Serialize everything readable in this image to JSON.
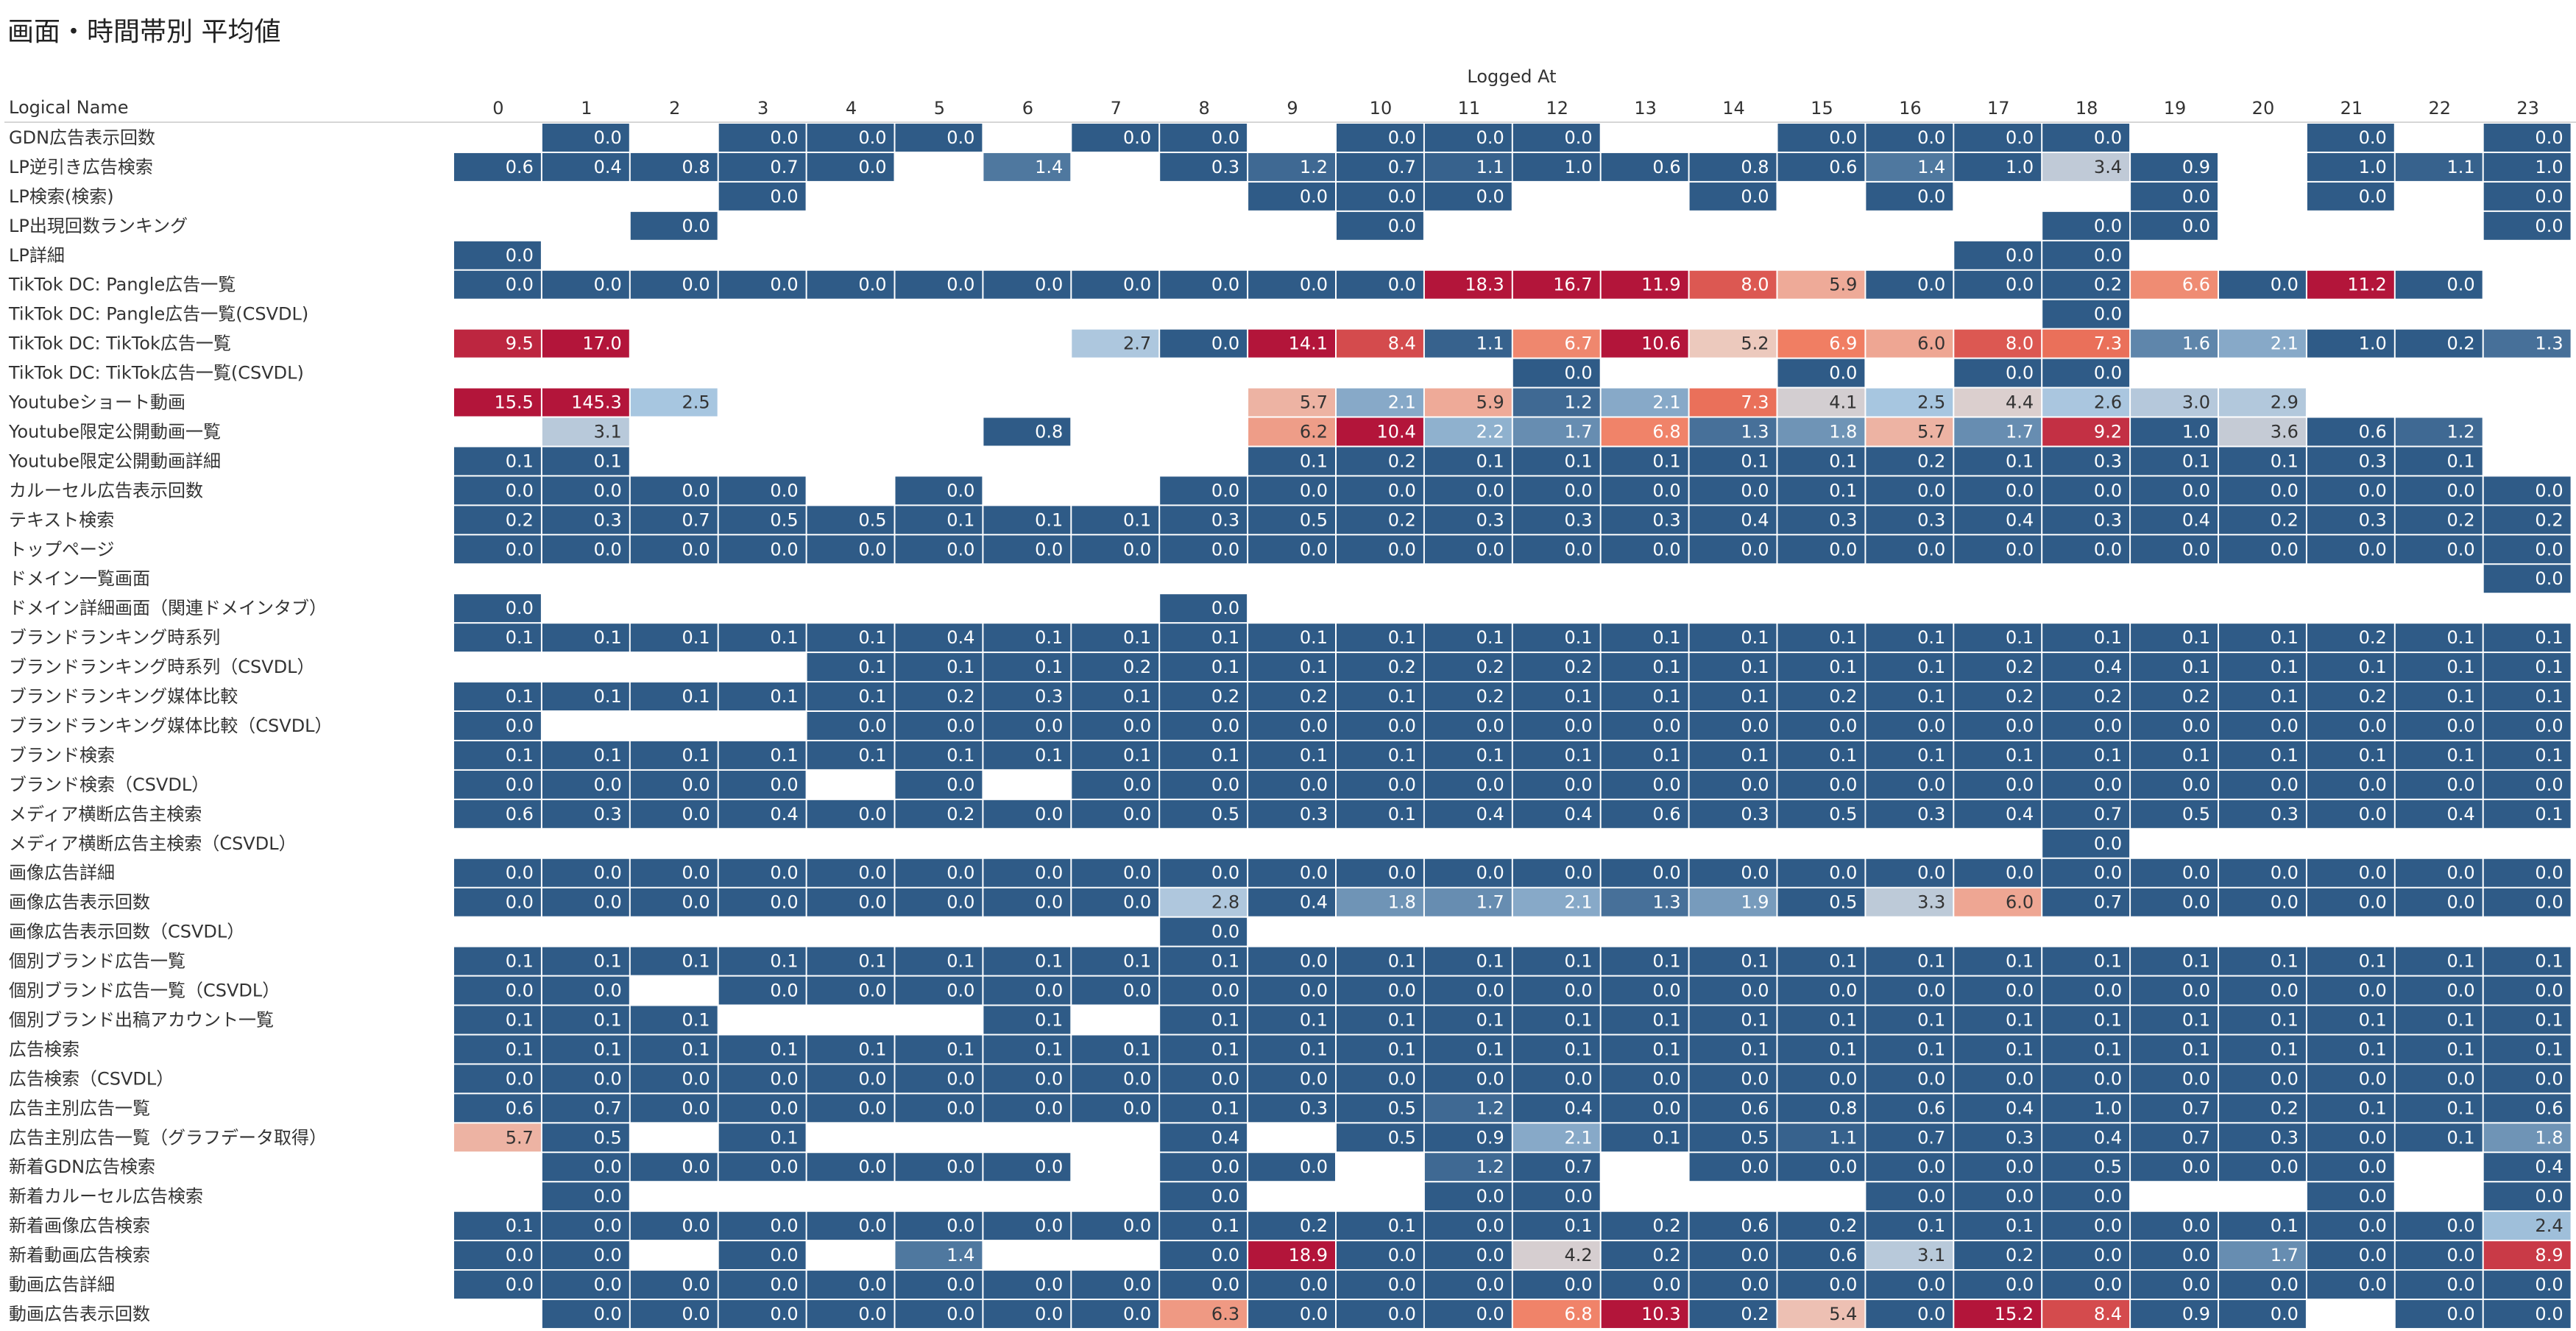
{
  "page": {
    "title": "画面・時間帯別 平均値"
  },
  "chart_data": {
    "type": "heatmap",
    "title": "画面・時間帯別 平均値",
    "xlabel": "Logged At",
    "ylabel": "Logical Name",
    "columns": [
      "0",
      "1",
      "2",
      "3",
      "4",
      "5",
      "6",
      "7",
      "8",
      "9",
      "10",
      "11",
      "12",
      "13",
      "14",
      "15",
      "16",
      "17",
      "18",
      "19",
      "20",
      "21",
      "22",
      "23"
    ],
    "rows": [
      "GDN広告表示回数",
      "LP逆引き広告検索",
      "LP検索(検索)",
      "LP出現回数ランキング",
      "LP詳細",
      "TikTok DC: Pangle広告一覧",
      "TikTok DC: Pangle広告一覧(CSVDL)",
      "TikTok DC: TikTok広告一覧",
      "TikTok DC: TikTok広告一覧(CSVDL)",
      "Youtubeショート動画",
      "Youtube限定公開動画一覧",
      "Youtube限定公開動画詳細",
      "カルーセル広告表示回数",
      "テキスト検索",
      "トップページ",
      "ドメイン一覧画面",
      "ドメイン詳細画面（関連ドメインタブ）",
      "ブランドランキング時系列",
      "ブランドランキング時系列（CSVDL）",
      "ブランドランキング媒体比較",
      "ブランドランキング媒体比較（CSVDL）",
      "ブランド検索",
      "ブランド検索（CSVDL）",
      "メディア横断広告主検索",
      "メディア横断広告主検索（CSVDL）",
      "画像広告詳細",
      "画像広告表示回数",
      "画像広告表示回数（CSVDL）",
      "個別ブランド広告一覧",
      "個別ブランド広告一覧（CSVDL）",
      "個別ブランド出稿アカウント一覧",
      "広告検索",
      "広告検索（CSVDL）",
      "広告主別広告一覧",
      "広告主別広告一覧（グラフデータ取得）",
      "新着GDN広告検索",
      "新着カルーセル広告検索",
      "新着画像広告検索",
      "新着動画広告検索",
      "動画広告詳細",
      "動画広告表示回数"
    ],
    "values": [
      [
        null,
        0.0,
        null,
        0.0,
        0.0,
        0.0,
        null,
        0.0,
        0.0,
        null,
        0.0,
        0.0,
        0.0,
        null,
        null,
        0.0,
        0.0,
        0.0,
        0.0,
        null,
        null,
        0.0,
        null,
        0.0
      ],
      [
        0.6,
        0.4,
        0.8,
        0.7,
        0.0,
        null,
        1.4,
        null,
        0.3,
        1.2,
        0.7,
        1.1,
        1.0,
        0.6,
        0.8,
        0.6,
        1.4,
        1.0,
        3.4,
        0.9,
        null,
        1.0,
        1.1,
        1.0
      ],
      [
        null,
        null,
        null,
        0.0,
        null,
        null,
        null,
        null,
        null,
        0.0,
        0.0,
        0.0,
        null,
        null,
        0.0,
        null,
        0.0,
        null,
        null,
        0.0,
        null,
        0.0,
        null,
        0.0
      ],
      [
        null,
        null,
        0.0,
        null,
        null,
        null,
        null,
        null,
        null,
        null,
        0.0,
        null,
        null,
        null,
        null,
        null,
        null,
        null,
        0.0,
        0.0,
        null,
        null,
        null,
        0.0
      ],
      [
        0.0,
        null,
        null,
        null,
        null,
        null,
        null,
        null,
        null,
        null,
        null,
        null,
        null,
        null,
        null,
        null,
        null,
        0.0,
        0.0,
        null,
        null,
        null,
        null,
        null
      ],
      [
        0.0,
        0.0,
        0.0,
        0.0,
        0.0,
        0.0,
        0.0,
        0.0,
        0.0,
        0.0,
        0.0,
        18.3,
        16.7,
        11.9,
        8.0,
        5.9,
        0.0,
        0.0,
        0.2,
        6.6,
        0.0,
        11.2,
        0.0,
        null
      ],
      [
        null,
        null,
        null,
        null,
        null,
        null,
        null,
        null,
        null,
        null,
        null,
        null,
        null,
        null,
        null,
        null,
        null,
        null,
        0.0,
        null,
        null,
        null,
        null,
        null
      ],
      [
        9.5,
        17.0,
        null,
        null,
        null,
        null,
        null,
        2.7,
        0.0,
        14.1,
        8.4,
        1.1,
        6.7,
        10.6,
        5.2,
        6.9,
        6.0,
        8.0,
        7.3,
        1.6,
        2.1,
        1.0,
        0.2,
        1.3
      ],
      [
        null,
        null,
        null,
        null,
        null,
        null,
        null,
        null,
        null,
        null,
        null,
        null,
        0.0,
        null,
        null,
        0.0,
        null,
        0.0,
        0.0,
        null,
        null,
        null,
        null,
        null
      ],
      [
        15.5,
        145.3,
        2.5,
        null,
        null,
        null,
        null,
        null,
        null,
        5.7,
        2.1,
        5.9,
        1.2,
        2.1,
        7.3,
        4.1,
        2.5,
        4.4,
        2.6,
        3.0,
        2.9,
        null,
        null,
        null
      ],
      [
        null,
        3.1,
        null,
        null,
        null,
        null,
        0.8,
        null,
        null,
        6.2,
        10.4,
        2.2,
        1.7,
        6.8,
        1.3,
        1.8,
        5.7,
        1.7,
        9.2,
        1.0,
        3.6,
        0.6,
        1.2,
        null
      ],
      [
        0.1,
        0.1,
        null,
        null,
        null,
        null,
        null,
        null,
        null,
        0.1,
        0.2,
        0.1,
        0.1,
        0.1,
        0.1,
        0.1,
        0.2,
        0.1,
        0.3,
        0.1,
        0.1,
        0.3,
        0.1,
        null
      ],
      [
        0.0,
        0.0,
        0.0,
        0.0,
        null,
        0.0,
        null,
        null,
        0.0,
        0.0,
        0.0,
        0.0,
        0.0,
        0.0,
        0.0,
        0.1,
        0.0,
        0.0,
        0.0,
        0.0,
        0.0,
        0.0,
        0.0,
        0.0
      ],
      [
        0.2,
        0.3,
        0.7,
        0.5,
        0.5,
        0.1,
        0.1,
        0.1,
        0.3,
        0.5,
        0.2,
        0.3,
        0.3,
        0.3,
        0.4,
        0.3,
        0.3,
        0.4,
        0.3,
        0.4,
        0.2,
        0.3,
        0.2,
        0.2
      ],
      [
        0.0,
        0.0,
        0.0,
        0.0,
        0.0,
        0.0,
        0.0,
        0.0,
        0.0,
        0.0,
        0.0,
        0.0,
        0.0,
        0.0,
        0.0,
        0.0,
        0.0,
        0.0,
        0.0,
        0.0,
        0.0,
        0.0,
        0.0,
        0.0
      ],
      [
        null,
        null,
        null,
        null,
        null,
        null,
        null,
        null,
        null,
        null,
        null,
        null,
        null,
        null,
        null,
        null,
        null,
        null,
        null,
        null,
        null,
        null,
        null,
        0.0
      ],
      [
        0.0,
        null,
        null,
        null,
        null,
        null,
        null,
        null,
        0.0,
        null,
        null,
        null,
        null,
        null,
        null,
        null,
        null,
        null,
        null,
        null,
        null,
        null,
        null,
        null
      ],
      [
        0.1,
        0.1,
        0.1,
        0.1,
        0.1,
        0.4,
        0.1,
        0.1,
        0.1,
        0.1,
        0.1,
        0.1,
        0.1,
        0.1,
        0.1,
        0.1,
        0.1,
        0.1,
        0.1,
        0.1,
        0.1,
        0.2,
        0.1,
        0.1
      ],
      [
        null,
        null,
        null,
        null,
        0.1,
        0.1,
        0.1,
        0.2,
        0.1,
        0.1,
        0.2,
        0.2,
        0.2,
        0.1,
        0.1,
        0.1,
        0.1,
        0.2,
        0.4,
        0.1,
        0.1,
        0.1,
        0.1,
        0.1
      ],
      [
        0.1,
        0.1,
        0.1,
        0.1,
        0.1,
        0.2,
        0.3,
        0.1,
        0.2,
        0.2,
        0.1,
        0.2,
        0.1,
        0.1,
        0.1,
        0.2,
        0.1,
        0.2,
        0.2,
        0.2,
        0.1,
        0.2,
        0.1,
        0.1
      ],
      [
        0.0,
        null,
        null,
        null,
        0.0,
        0.0,
        0.0,
        0.0,
        0.0,
        0.0,
        0.0,
        0.0,
        0.0,
        0.0,
        0.0,
        0.0,
        0.0,
        0.0,
        0.0,
        0.0,
        0.0,
        0.0,
        0.0,
        0.0
      ],
      [
        0.1,
        0.1,
        0.1,
        0.1,
        0.1,
        0.1,
        0.1,
        0.1,
        0.1,
        0.1,
        0.1,
        0.1,
        0.1,
        0.1,
        0.1,
        0.1,
        0.1,
        0.1,
        0.1,
        0.1,
        0.1,
        0.1,
        0.1,
        0.1
      ],
      [
        0.0,
        0.0,
        0.0,
        0.0,
        null,
        0.0,
        null,
        0.0,
        0.0,
        0.0,
        0.0,
        0.0,
        0.0,
        0.0,
        0.0,
        0.0,
        0.0,
        0.0,
        0.0,
        0.0,
        0.0,
        0.0,
        0.0,
        0.0
      ],
      [
        0.6,
        0.3,
        0.0,
        0.4,
        0.0,
        0.2,
        0.0,
        0.0,
        0.5,
        0.3,
        0.1,
        0.4,
        0.4,
        0.6,
        0.3,
        0.5,
        0.3,
        0.4,
        0.7,
        0.5,
        0.3,
        0.0,
        0.4,
        0.1
      ],
      [
        null,
        null,
        null,
        null,
        null,
        null,
        null,
        null,
        null,
        null,
        null,
        null,
        null,
        null,
        null,
        null,
        null,
        null,
        0.0,
        null,
        null,
        null,
        null,
        null
      ],
      [
        0.0,
        0.0,
        0.0,
        0.0,
        0.0,
        0.0,
        0.0,
        0.0,
        0.0,
        0.0,
        0.0,
        0.0,
        0.0,
        0.0,
        0.0,
        0.0,
        0.0,
        0.0,
        0.0,
        0.0,
        0.0,
        0.0,
        0.0,
        0.0
      ],
      [
        0.0,
        0.0,
        0.0,
        0.0,
        0.0,
        0.0,
        0.0,
        0.0,
        2.8,
        0.4,
        1.8,
        1.7,
        2.1,
        1.3,
        1.9,
        0.5,
        3.3,
        6.0,
        0.7,
        0.0,
        0.0,
        0.0,
        0.0,
        0.0
      ],
      [
        null,
        null,
        null,
        null,
        null,
        null,
        null,
        null,
        0.0,
        null,
        null,
        null,
        null,
        null,
        null,
        null,
        null,
        null,
        null,
        null,
        null,
        null,
        null,
        null
      ],
      [
        0.1,
        0.1,
        0.1,
        0.1,
        0.1,
        0.1,
        0.1,
        0.1,
        0.1,
        0.0,
        0.1,
        0.1,
        0.1,
        0.1,
        0.1,
        0.1,
        0.1,
        0.1,
        0.1,
        0.1,
        0.1,
        0.1,
        0.1,
        0.1
      ],
      [
        0.0,
        0.0,
        null,
        0.0,
        0.0,
        0.0,
        0.0,
        0.0,
        0.0,
        0.0,
        0.0,
        0.0,
        0.0,
        0.0,
        0.0,
        0.0,
        0.0,
        0.0,
        0.0,
        0.0,
        0.0,
        0.0,
        0.0,
        0.0
      ],
      [
        0.1,
        0.1,
        0.1,
        null,
        null,
        null,
        0.1,
        null,
        0.1,
        0.1,
        0.1,
        0.1,
        0.1,
        0.1,
        0.1,
        0.1,
        0.1,
        0.1,
        0.1,
        0.1,
        0.1,
        0.1,
        0.1,
        0.1
      ],
      [
        0.1,
        0.1,
        0.1,
        0.1,
        0.1,
        0.1,
        0.1,
        0.1,
        0.1,
        0.1,
        0.1,
        0.1,
        0.1,
        0.1,
        0.1,
        0.1,
        0.1,
        0.1,
        0.1,
        0.1,
        0.1,
        0.1,
        0.1,
        0.1
      ],
      [
        0.0,
        0.0,
        0.0,
        0.0,
        0.0,
        0.0,
        0.0,
        0.0,
        0.0,
        0.0,
        0.0,
        0.0,
        0.0,
        0.0,
        0.0,
        0.0,
        0.0,
        0.0,
        0.0,
        0.0,
        0.0,
        0.0,
        0.0,
        0.0
      ],
      [
        0.6,
        0.7,
        0.0,
        0.0,
        0.0,
        0.0,
        0.0,
        0.0,
        0.1,
        0.3,
        0.5,
        1.2,
        0.4,
        0.0,
        0.6,
        0.8,
        0.6,
        0.4,
        1.0,
        0.7,
        0.2,
        0.1,
        0.1,
        0.6
      ],
      [
        5.7,
        0.5,
        null,
        0.1,
        null,
        null,
        null,
        null,
        0.4,
        null,
        0.5,
        0.9,
        2.1,
        0.1,
        0.5,
        1.1,
        0.7,
        0.3,
        0.4,
        0.7,
        0.3,
        0.0,
        0.1,
        1.8
      ],
      [
        null,
        0.0,
        0.0,
        0.0,
        0.0,
        0.0,
        0.0,
        null,
        0.0,
        0.0,
        null,
        1.2,
        0.7,
        null,
        0.0,
        0.0,
        0.0,
        0.0,
        0.5,
        0.0,
        0.0,
        0.0,
        null,
        0.4
      ],
      [
        null,
        0.0,
        null,
        null,
        null,
        null,
        null,
        null,
        0.0,
        null,
        null,
        0.0,
        0.0,
        null,
        null,
        null,
        0.0,
        0.0,
        0.0,
        null,
        null,
        0.0,
        null,
        0.0
      ],
      [
        0.1,
        0.0,
        0.0,
        0.0,
        0.0,
        0.0,
        0.0,
        0.0,
        0.1,
        0.2,
        0.1,
        0.0,
        0.1,
        0.2,
        0.6,
        0.2,
        0.1,
        0.1,
        0.0,
        0.0,
        0.1,
        0.0,
        0.0,
        2.4
      ],
      [
        0.0,
        0.0,
        null,
        0.0,
        null,
        1.4,
        null,
        null,
        0.0,
        18.9,
        0.0,
        0.0,
        4.2,
        0.2,
        0.0,
        0.6,
        3.1,
        0.2,
        0.0,
        0.0,
        1.7,
        0.0,
        0.0,
        8.9
      ],
      [
        0.0,
        0.0,
        0.0,
        0.0,
        0.0,
        0.0,
        0.0,
        0.0,
        0.0,
        0.0,
        0.0,
        0.0,
        0.0,
        0.0,
        0.0,
        0.0,
        0.0,
        0.0,
        0.0,
        0.0,
        0.0,
        0.0,
        0.0,
        0.0
      ],
      [
        null,
        0.0,
        0.0,
        0.0,
        0.0,
        0.0,
        0.0,
        0.0,
        6.3,
        0.0,
        0.0,
        0.0,
        6.8,
        10.3,
        0.2,
        5.4,
        0.0,
        15.2,
        8.4,
        0.9,
        0.0,
        null,
        0.0,
        0.0
      ]
    ],
    "color_scale": {
      "type": "diverging",
      "low": "#2f5b87",
      "mid_low": "#a7c6e0",
      "mid": "#ecd2c8",
      "mid_high": "#f07a5e",
      "high": "#b3153a"
    },
    "grid": false,
    "legend": "none"
  }
}
